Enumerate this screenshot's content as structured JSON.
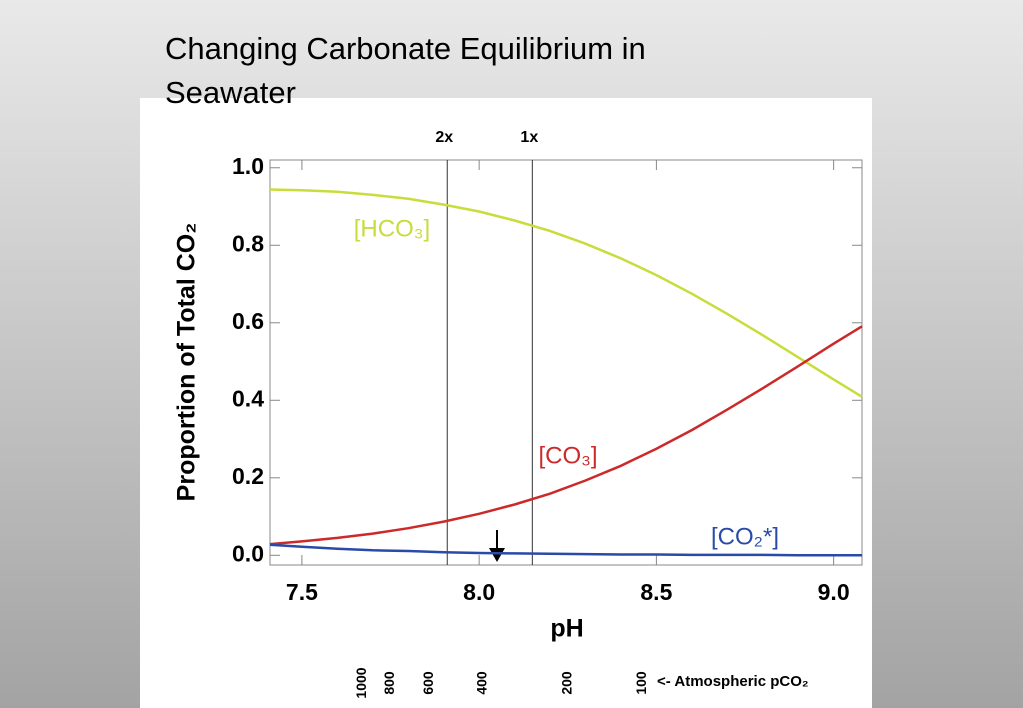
{
  "chart_data": {
    "type": "line",
    "title": "Changing Carbonate Equilibrium in Seawater",
    "x_label": "pH",
    "y_label": "Proportion of Total CO₂",
    "x": [
      7.41,
      7.5,
      7.6,
      7.7,
      7.8,
      7.9,
      8.0,
      8.1,
      8.2,
      8.3,
      8.4,
      8.5,
      8.6,
      8.7,
      8.8,
      8.9,
      9.0,
      9.08
    ],
    "series": [
      {
        "name": "[HCO₃]",
        "color": "#c8dc3c",
        "values": [
          0.944,
          0.942,
          0.938,
          0.93,
          0.92,
          0.905,
          0.887,
          0.864,
          0.837,
          0.804,
          0.766,
          0.723,
          0.675,
          0.623,
          0.568,
          0.511,
          0.454,
          0.409
        ]
      },
      {
        "name": "[CO₃]",
        "color": "#cc2a2a",
        "values": [
          0.029,
          0.036,
          0.045,
          0.056,
          0.07,
          0.087,
          0.107,
          0.131,
          0.159,
          0.193,
          0.231,
          0.275,
          0.323,
          0.376,
          0.431,
          0.488,
          0.546,
          0.591
        ]
      },
      {
        "name": "[CO₂*]",
        "color": "#2a4aa8",
        "values": [
          0.027,
          0.022,
          0.017,
          0.013,
          0.011,
          0.008,
          0.006,
          0.005,
          0.004,
          0.003,
          0.002,
          0.002,
          0.001,
          0.001,
          0.001,
          0,
          0,
          0
        ]
      }
    ],
    "reference_lines": [
      {
        "label": "2x",
        "x": 7.91
      },
      {
        "label": "1x",
        "x": 8.15
      }
    ],
    "pco2_label": "<- Atmospheric pCO₂",
    "pco2_ticks": [
      1000,
      800,
      600,
      400,
      200,
      100
    ],
    "pco2_tick_ph": [
      7.67,
      7.75,
      7.86,
      8.01,
      8.25,
      8.46
    ],
    "xlim": [
      7.41,
      9.08
    ],
    "ylim": [
      -0.025,
      1.02
    ],
    "xticks": [
      {
        "value": 7.5,
        "label": "7.5"
      },
      {
        "value": 8.0,
        "label": "8.0"
      },
      {
        "value": 8.5,
        "label": "8.5"
      },
      {
        "value": 9.0,
        "label": "9.0"
      }
    ],
    "yticks": [
      {
        "value": 0,
        "label": "0.0"
      },
      {
        "value": 0.2,
        "label": "0.2"
      },
      {
        "value": 0.4,
        "label": "0.4"
      },
      {
        "value": 0.6,
        "label": "0.6"
      },
      {
        "value": 0.8,
        "label": "0.8"
      },
      {
        "value": 1.0,
        "label": "1.0"
      }
    ]
  }
}
